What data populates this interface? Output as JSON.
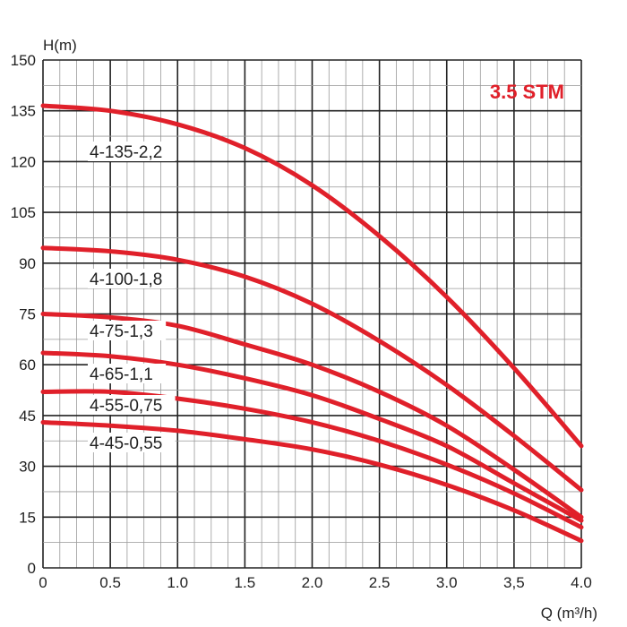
{
  "chart_data": {
    "type": "line",
    "title": "3.5 STM",
    "xlabel": "Q (m³/h)",
    "ylabel": "H(m)",
    "xlim": [
      0,
      4.0
    ],
    "ylim": [
      0,
      150
    ],
    "x_ticks": [
      "0",
      "0.5",
      "1.0",
      "1.5",
      "2.0",
      "2.5",
      "3.0",
      "3,5",
      "4.0"
    ],
    "y_ticks": [
      "0",
      "15",
      "30",
      "45",
      "60",
      "75",
      "90",
      "105",
      "120",
      "135",
      "150"
    ],
    "grid": true,
    "colors": {
      "series": "#e0202a",
      "title": "#e0202a",
      "grid_major": "#222222",
      "grid_minor": "#999999"
    },
    "x": [
      0,
      0.5,
      1.0,
      1.5,
      2.0,
      2.5,
      3.0,
      3.5,
      4.0
    ],
    "series": [
      {
        "name": "4-135-2,2",
        "values": [
          136.5,
          135,
          131,
          124,
          113,
          98,
          80,
          59,
          36
        ]
      },
      {
        "name": "4-100-1,8",
        "values": [
          94.5,
          93.5,
          91,
          86,
          78,
          67,
          54,
          39,
          23
        ]
      },
      {
        "name": "4-75-1,3",
        "values": [
          75,
          74,
          71.5,
          66,
          60,
          52,
          42,
          29,
          15
        ]
      },
      {
        "name": "4-65-1,1",
        "values": [
          63.5,
          62.5,
          60,
          56,
          51,
          44,
          36,
          25,
          14
        ]
      },
      {
        "name": "4-55-0,75",
        "values": [
          52,
          52,
          50,
          47,
          43,
          37.5,
          30.5,
          22,
          12
        ]
      },
      {
        "name": "4-45-0,55",
        "values": [
          43,
          42,
          40.5,
          38,
          35,
          30.5,
          24.5,
          17,
          8
        ]
      }
    ]
  }
}
